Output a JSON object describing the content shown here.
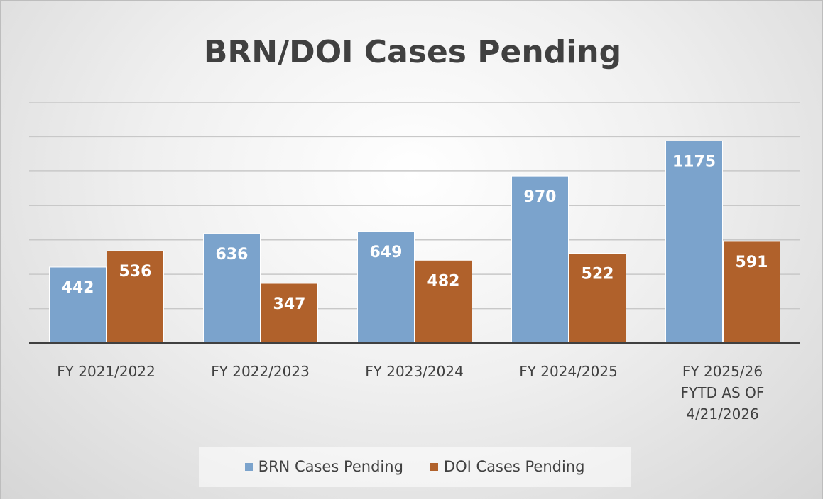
{
  "chart_data": {
    "type": "bar",
    "title": "BRN/DOI Cases Pending",
    "categories": [
      "FY 2021/2022",
      "FY 2022/2023",
      "FY 2023/2024",
      "FY 2024/2025",
      "FY 2025/26\nFYTD AS OF\n4/21/2026"
    ],
    "series": [
      {
        "name": "BRN Cases Pending",
        "color": "#7ba3cc",
        "values": [
          442,
          636,
          649,
          970,
          1175
        ]
      },
      {
        "name": "DOI Cases Pending",
        "color": "#b0612b",
        "values": [
          536,
          347,
          482,
          522,
          591
        ]
      }
    ],
    "ylim": [
      0,
      1400
    ],
    "yticks": [
      0,
      200,
      400,
      600,
      800,
      1000,
      1200,
      1400
    ],
    "grid": true,
    "legend": "bottom"
  }
}
